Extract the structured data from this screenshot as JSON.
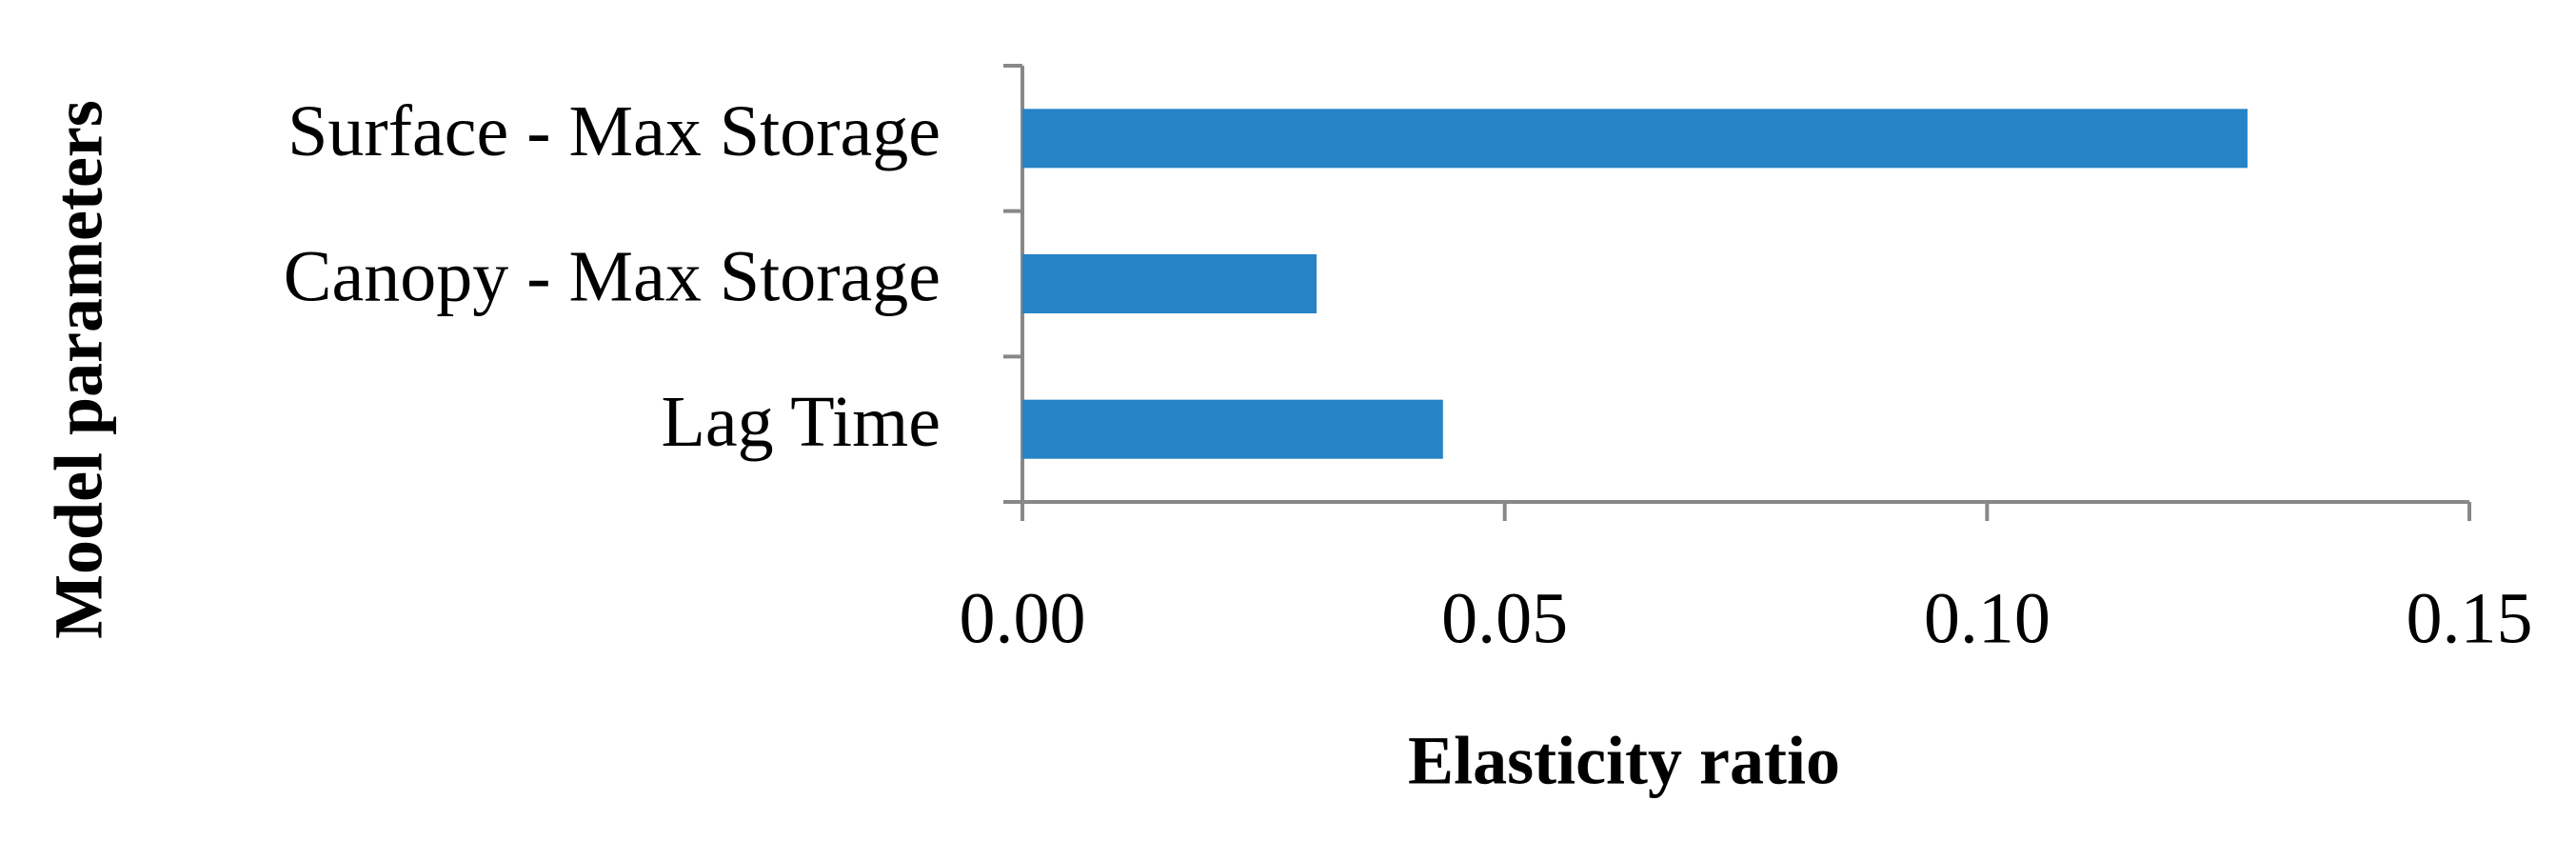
{
  "chart_data": {
    "type": "hbar",
    "x_label": "Elasticity ratio",
    "y_label": "Model parameters",
    "categories": [
      "Surface - Max Storage",
      "Canopy - Max Storage",
      "Lag Time"
    ],
    "values": [
      0.127,
      0.0305,
      0.0436
    ],
    "color": "#2683c6",
    "xlim": [
      0,
      0.15
    ],
    "xticks": [
      {
        "value": 0,
        "label": "0.00"
      },
      0.05,
      {
        "value": 0.1,
        "label": "0.10"
      },
      0.15
    ],
    "grid": false
  }
}
